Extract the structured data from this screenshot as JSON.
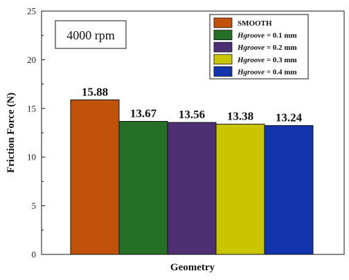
{
  "chart_data": {
    "type": "bar",
    "categories": [
      "SMOOTH",
      "Hgroove = 0.1 mm",
      "Hgroove = 0.2 mm",
      "Hgroove = 0.3 mm",
      "Hgroove = 0.4 mm"
    ],
    "values": [
      15.88,
      13.67,
      13.56,
      13.38,
      13.24
    ],
    "data_labels": [
      "15.88",
      "13.67",
      "13.56",
      "13.38",
      "13.24"
    ],
    "colors": [
      "#c0520a",
      "#257026",
      "#4e2f73",
      "#c9c500",
      "#1434ae"
    ],
    "legend": [
      {
        "prefix": "",
        "italic": "SMOOTH",
        "suffix": "",
        "plain": true
      },
      {
        "prefix": "",
        "italic": "Hgroove",
        "suffix": " = 0.1 mm"
      },
      {
        "prefix": "",
        "italic": "Hgroove",
        "suffix": " = 0.2 mm"
      },
      {
        "prefix": "",
        "italic": "Hgroove",
        "suffix": " = 0.3 mm"
      },
      {
        "prefix": "",
        "italic": "Hgroove",
        "suffix": " = 0.4 mm"
      }
    ],
    "legend_position": "top-right",
    "annotation": "4000 rpm",
    "title": "",
    "xlabel": "Geometry",
    "ylabel": "Friction Force (N)",
    "ylim": [
      0,
      25
    ],
    "yticks": [
      "0",
      "5",
      "10",
      "15",
      "20",
      "25"
    ],
    "grid": false
  }
}
